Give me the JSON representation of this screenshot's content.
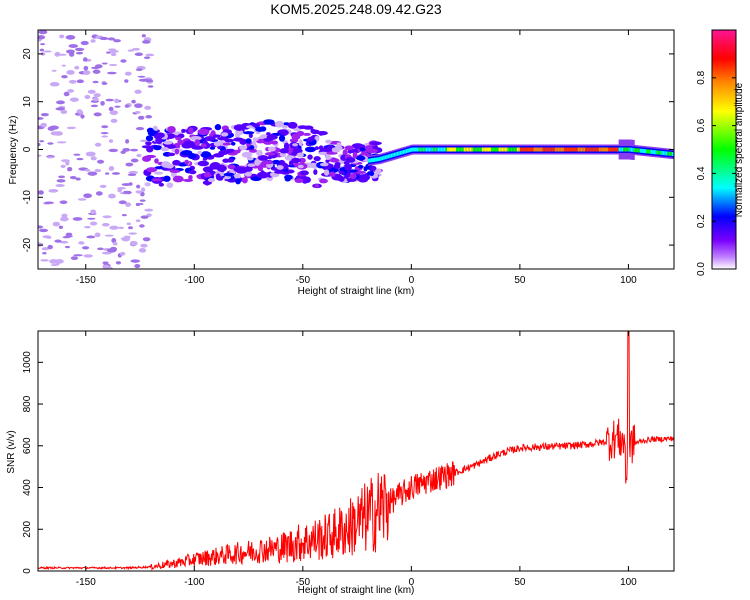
{
  "title": "KOM5.2025.248.09.42.G23",
  "chart_data": [
    {
      "type": "heatmap",
      "name": "spectrogram",
      "title": "KOM5.2025.248.09.42.G23",
      "xlabel": "Height of straight line (km)",
      "ylabel": "Frequency (Hz)",
      "xlim": [
        -172,
        121
      ],
      "ylim": [
        -25,
        25
      ],
      "xticks": [
        -150,
        -100,
        -50,
        0,
        50,
        100
      ],
      "yticks": [
        -20,
        -10,
        0,
        10,
        20
      ],
      "colorbar": {
        "label": "Normalized spectral amplitude",
        "range": [
          0,
          1
        ],
        "ticks": [
          "0.0",
          "0.2",
          "0.4",
          "0.6",
          "0.8"
        ],
        "colors": [
          "#ffffff",
          "#a020f0",
          "#5500ff",
          "#0000ff",
          "#00ffff",
          "#00ff00",
          "#ffff00",
          "#ff8800",
          "#ff0000",
          "#ff1493"
        ]
      },
      "signal_track": {
        "description_points_km_hz": [
          [
            -100,
            -1.5
          ],
          [
            -60,
            0
          ],
          [
            -30,
            -3
          ],
          [
            -15,
            -2
          ],
          [
            0,
            0
          ],
          [
            50,
            0
          ],
          [
            100,
            0
          ],
          [
            121,
            -1
          ]
        ],
        "peak_amplitude_range_km": [
          50,
          95
        ]
      }
    },
    {
      "type": "line",
      "name": "snr",
      "xlabel": "Height of straight line (km)",
      "ylabel": "SNR (v/v)",
      "xlim": [
        -172,
        121
      ],
      "ylim": [
        0,
        1150
      ],
      "xticks": [
        -150,
        -100,
        -50,
        0,
        50,
        100
      ],
      "yticks": [
        0,
        200,
        400,
        600,
        800,
        1000
      ],
      "series": [
        {
          "name": "SNR",
          "color": "#ff0000",
          "x": [
            -172,
            -150,
            -130,
            -120,
            -110,
            -100,
            -90,
            -80,
            -70,
            -60,
            -50,
            -40,
            -30,
            -20,
            -10,
            0,
            10,
            20,
            30,
            40,
            50,
            60,
            70,
            80,
            90,
            95,
            100,
            105,
            110,
            121
          ],
          "y": [
            15,
            15,
            15,
            20,
            35,
            55,
            70,
            85,
            100,
            110,
            140,
            160,
            200,
            260,
            330,
            400,
            440,
            470,
            510,
            560,
            590,
            595,
            598,
            605,
            620,
            640,
            600,
            620,
            630,
            635
          ]
        }
      ]
    }
  ]
}
